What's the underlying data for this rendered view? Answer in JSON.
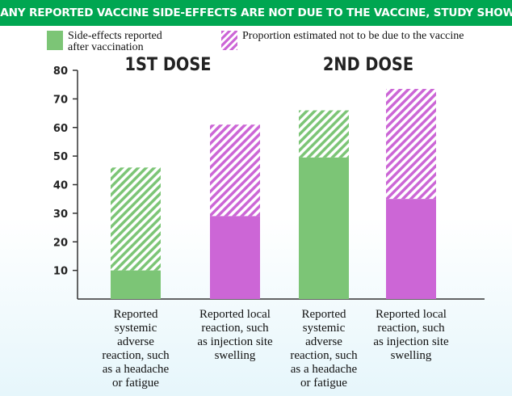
{
  "header": {
    "title": "MANY REPORTED VACCINE SIDE-EFFECTS ARE NOT DUE TO THE VACCINE, STUDY SHOWS"
  },
  "legend": [
    {
      "label": "Side-effects reported after vaccination",
      "style": "solid"
    },
    {
      "label": "Proportion estimated not to be due to the vaccine",
      "style": "hatched"
    }
  ],
  "doses": [
    "1ST DOSE",
    "2ND DOSE"
  ],
  "colors": {
    "header_bg": "#00a651",
    "green": "#7cc576",
    "purple": "#cc66d6"
  },
  "chart_data": {
    "type": "bar",
    "stacked": true,
    "categories": [
      "Reported systemic adverse reaction, such as a headache or fatigue",
      "Reported local reaction, such as injection site swelling",
      "Reported systemic adverse reaction, such as a headache or fatigue",
      "Reported local reaction, such as injection site swelling"
    ],
    "category_lines": [
      [
        "Reported",
        "systemic",
        "adverse",
        "reaction, such",
        "as a headache",
        "or fatigue"
      ],
      [
        "Reported local",
        "reaction, such",
        "as injection site",
        "swelling"
      ],
      [
        "Reported",
        "systemic",
        "adverse",
        "reaction, such",
        "as a headache",
        "or fatigue"
      ],
      [
        "Reported local",
        "reaction, such",
        "as injection site",
        "swelling"
      ]
    ],
    "groups": [
      "1ST DOSE",
      "1ST DOSE",
      "2ND DOSE",
      "2ND DOSE"
    ],
    "bar_colors": [
      "#7cc576",
      "#cc66d6",
      "#7cc576",
      "#cc66d6"
    ],
    "series": [
      {
        "name": "Side-effects reported after vaccination",
        "values": [
          10,
          29,
          49.5,
          35
        ]
      },
      {
        "name": "Proportion estimated not to be due to the vaccine",
        "values": [
          36,
          32,
          16.5,
          38.5
        ]
      }
    ],
    "totals": [
      46,
      61,
      66,
      73.5
    ],
    "yticks": [
      10,
      20,
      30,
      40,
      50,
      60,
      70,
      80
    ],
    "ylim": [
      0,
      80
    ],
    "grid": false,
    "legend_position": "top"
  }
}
